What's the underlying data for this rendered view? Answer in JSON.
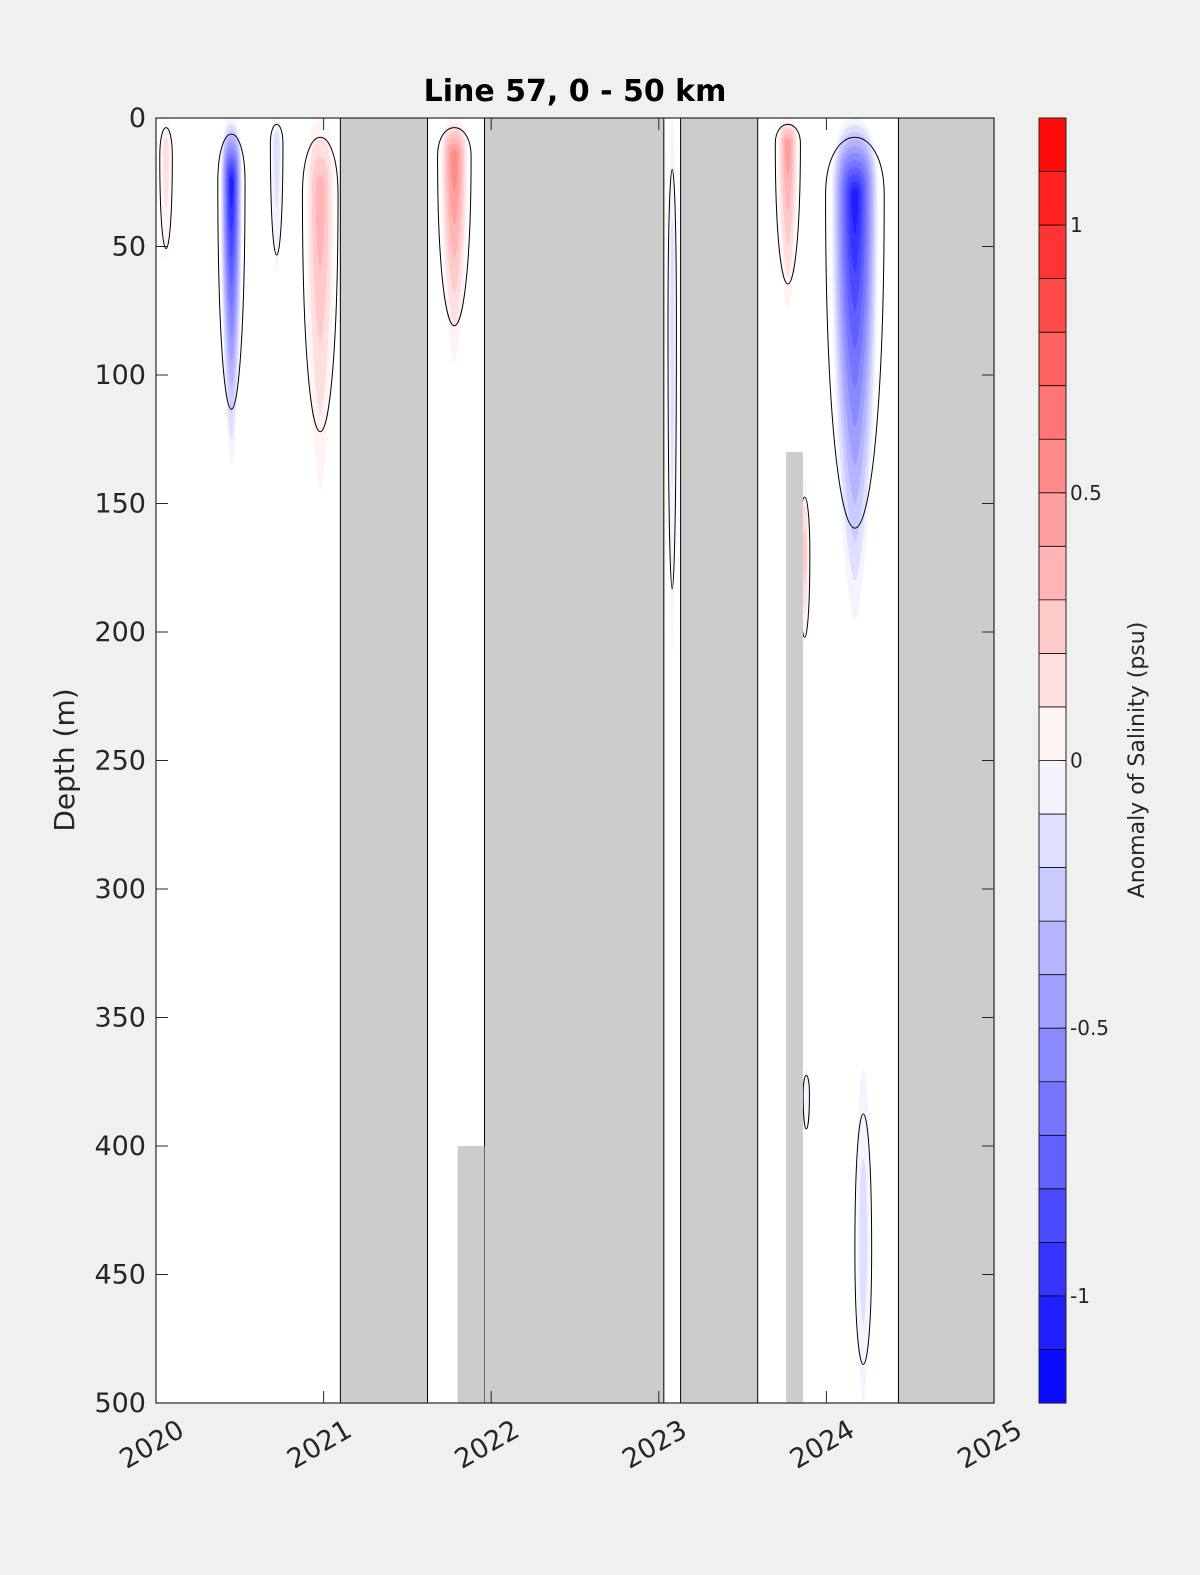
{
  "chart_data": {
    "type": "heatmap",
    "title": "Line 57, 0 - 50 km",
    "xlabel": "",
    "ylabel": "Depth (m)",
    "xlim": [
      2020,
      2025
    ],
    "ylim": [
      0,
      500
    ],
    "y_reversed": true,
    "xticks": [
      "2020",
      "2021",
      "2022",
      "2023",
      "2024",
      "2025"
    ],
    "yticks": [
      "0",
      "50",
      "100",
      "150",
      "200",
      "250",
      "300",
      "350",
      "400",
      "450",
      "500"
    ],
    "grid": false,
    "colorbar": {
      "label": "Anomaly of Salinity (psu)",
      "range": [
        -1.2,
        1.2
      ],
      "levels": 24,
      "tick_values": [
        -1,
        -0.5,
        0,
        0.5,
        1
      ],
      "tick_labels": [
        "-1",
        "-0.5",
        "0",
        "0.5",
        "1"
      ],
      "colormap": "blue-white-red"
    },
    "no_data_color": "#cccccc",
    "no_data_periods": [
      {
        "start": 2021.1,
        "end": 2021.62
      },
      {
        "start": 2021.96,
        "end": 2023.03
      },
      {
        "start": 2023.13,
        "end": 2023.59
      },
      {
        "start": 2024.43,
        "end": 2025.0
      }
    ],
    "partial_no_data": [
      {
        "start": 2021.8,
        "end": 2021.96,
        "depth_from": 400,
        "depth_to": 500
      },
      {
        "start": 2023.76,
        "end": 2023.86,
        "depth_from": 130,
        "depth_to": 500
      }
    ],
    "anomaly_features": [
      {
        "center": 2020.45,
        "width": 0.13,
        "depth_top": 0,
        "depth_bottom": 135,
        "core_depth": 25,
        "peak": -1.1
      },
      {
        "center": 2020.72,
        "width": 0.06,
        "depth_top": 0,
        "depth_bottom": 60,
        "core_depth": 10,
        "peak": -0.2
      },
      {
        "center": 2020.06,
        "width": 0.06,
        "depth_top": 0,
        "depth_bottom": 55,
        "core_depth": 15,
        "peak": 0.25
      },
      {
        "center": 2020.98,
        "width": 0.17,
        "depth_top": 0,
        "depth_bottom": 145,
        "core_depth": 30,
        "peak": 0.45
      },
      {
        "center": 2021.78,
        "width": 0.16,
        "depth_top": 0,
        "depth_bottom": 95,
        "core_depth": 15,
        "peak": 0.6
      },
      {
        "center": 2023.08,
        "width": 0.04,
        "depth_top": 0,
        "depth_bottom": 210,
        "core_depth": 80,
        "peak": -0.2
      },
      {
        "center": 2023.77,
        "width": 0.12,
        "depth_top": 0,
        "depth_bottom": 75,
        "core_depth": 10,
        "peak": 0.55
      },
      {
        "center": 2023.87,
        "width": 0.05,
        "depth_top": 140,
        "depth_bottom": 205,
        "core_depth": 170,
        "peak": 0.3
      },
      {
        "center": 2024.17,
        "width": 0.28,
        "depth_top": 0,
        "depth_bottom": 195,
        "core_depth": 30,
        "peak": -1.15
      },
      {
        "center": 2024.22,
        "width": 0.08,
        "depth_top": 370,
        "depth_bottom": 500,
        "core_depth": 440,
        "peak": -0.2
      },
      {
        "center": 2023.88,
        "width": 0.03,
        "depth_top": 370,
        "depth_bottom": 390,
        "core_depth": 380,
        "peak": -0.15
      }
    ]
  }
}
